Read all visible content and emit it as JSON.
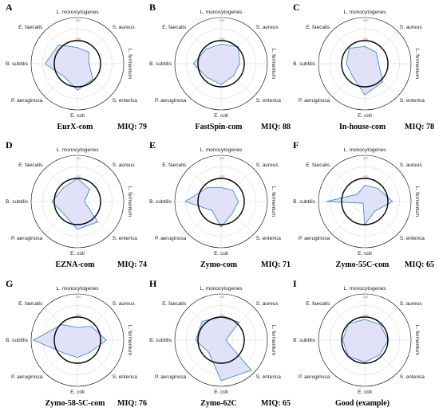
{
  "colors": {
    "fill": "#dcdcf6",
    "line": "#3b8fd0",
    "reference_ring": "#000000",
    "grid": "#c8c8c8"
  },
  "chart_data": [
    {
      "type": "radar",
      "panel": "A",
      "caption": "EurX-com",
      "miq": "MIQ: 79",
      "categories": [
        "L. monocytogenes",
        "S. aureus",
        "L. fermentum",
        "S. enterica",
        "E. coli",
        "P. aeruginosa",
        "B. subtilis",
        "E. faecalis"
      ],
      "values": [
        70,
        70,
        50,
        95,
        115,
        80,
        140,
        115
      ],
      "reference": 100,
      "rlim": [
        0,
        200
      ],
      "ring_labels": [
        "100",
        "200"
      ]
    },
    {
      "type": "radar",
      "panel": "B",
      "caption": "FastSpin-com",
      "miq": "MIQ: 88",
      "categories": [
        "L. monocytogenes",
        "S. aureus",
        "L. fermentum",
        "S. enterica",
        "E. coli",
        "P. aeruginosa",
        "B. subtilis",
        "E. faecalis"
      ],
      "values": [
        85,
        105,
        80,
        75,
        90,
        85,
        120,
        90
      ],
      "reference": 100,
      "rlim": [
        0,
        200
      ],
      "ring_labels": [
        "100",
        "200"
      ]
    },
    {
      "type": "radar",
      "panel": "C",
      "caption": "In-house-com",
      "miq": "MIQ: 78",
      "categories": [
        "L. monocytogenes",
        "S. aureus",
        "L. fermentum",
        "S. enterica",
        "E. coli",
        "P. aeruginosa",
        "B. subtilis",
        "E. faecalis"
      ],
      "values": [
        75,
        70,
        60,
        110,
        135,
        75,
        80,
        95
      ],
      "reference": 100,
      "rlim": [
        0,
        200
      ],
      "ring_labels": [
        "100",
        "200"
      ]
    },
    {
      "type": "radar",
      "panel": "D",
      "caption": "EZNA-com",
      "miq": "MIQ: 74",
      "categories": [
        "L. monocytogenes",
        "S. aureus",
        "L. fermentum",
        "S. enterica",
        "E. coli",
        "P. aeruginosa",
        "B. subtilis",
        "E. faecalis"
      ],
      "values": [
        100,
        75,
        30,
        125,
        120,
        80,
        110,
        85
      ],
      "reference": 100,
      "rlim": [
        0,
        200
      ],
      "ring_labels": [
        "100",
        "200"
      ]
    },
    {
      "type": "radar",
      "panel": "E",
      "caption": "Zymo-com",
      "miq": "MIQ: 71",
      "categories": [
        "L. monocytogenes",
        "S. aureus",
        "L. fermentum",
        "S. enterica",
        "E. coli",
        "P. aeruginosa",
        "B. subtilis",
        "E. faecalis"
      ],
      "values": [
        60,
        70,
        75,
        70,
        110,
        55,
        155,
        85
      ],
      "reference": 100,
      "rlim": [
        0,
        200
      ],
      "ring_labels": [
        "100",
        "200"
      ]
    },
    {
      "type": "radar",
      "panel": "F",
      "caption": "Zymo-55C-com",
      "miq": "MIQ: 65",
      "categories": [
        "L. monocytogenes",
        "S. aureus",
        "L. fermentum",
        "S. enterica",
        "E. coli",
        "P. aeruginosa",
        "B. subtilis",
        "E. faecalis"
      ],
      "values": [
        70,
        80,
        120,
        60,
        100,
        10,
        165,
        45
      ],
      "reference": 100,
      "rlim": [
        0,
        200
      ],
      "ring_labels": [
        "100",
        "200"
      ]
    },
    {
      "type": "radar",
      "panel": "G",
      "caption": "Zymo-58-5C-com",
      "miq": "MIQ: 76",
      "categories": [
        "L. monocytogenes",
        "S. aureus",
        "L. fermentum",
        "S. enterica",
        "E. coli",
        "P. aeruginosa",
        "B. subtilis",
        "E. faecalis"
      ],
      "values": [
        55,
        85,
        125,
        75,
        75,
        80,
        190,
        95
      ],
      "reference": 100,
      "rlim": [
        0,
        200
      ],
      "ring_labels": [
        "100",
        "200"
      ]
    },
    {
      "type": "radar",
      "panel": "H",
      "caption": "Zymo-62C",
      "miq": "MIQ: 65",
      "categories": [
        "L. monocytogenes",
        "S. aureus",
        "L. fermentum",
        "S. enterica",
        "E. coli",
        "P. aeruginosa",
        "B. subtilis",
        "E. faecalis"
      ],
      "values": [
        100,
        110,
        20,
        185,
        175,
        75,
        110,
        115
      ],
      "reference": 100,
      "rlim": [
        0,
        200
      ],
      "ring_labels": [
        "100",
        "200"
      ]
    },
    {
      "type": "radar",
      "panel": "I",
      "caption": "Good (example)",
      "miq": "",
      "categories": [
        "L. monocytogenes",
        "S. aureus",
        "L. fermentum",
        "S. enterica",
        "E. coli",
        "P. aeruginosa",
        "B. subtilis",
        "E. faecalis"
      ],
      "values": [
        90,
        95,
        100,
        90,
        95,
        100,
        95,
        100
      ],
      "reference": 100,
      "rlim": [
        0,
        200
      ],
      "ring_labels": [
        "100",
        "200"
      ]
    }
  ]
}
